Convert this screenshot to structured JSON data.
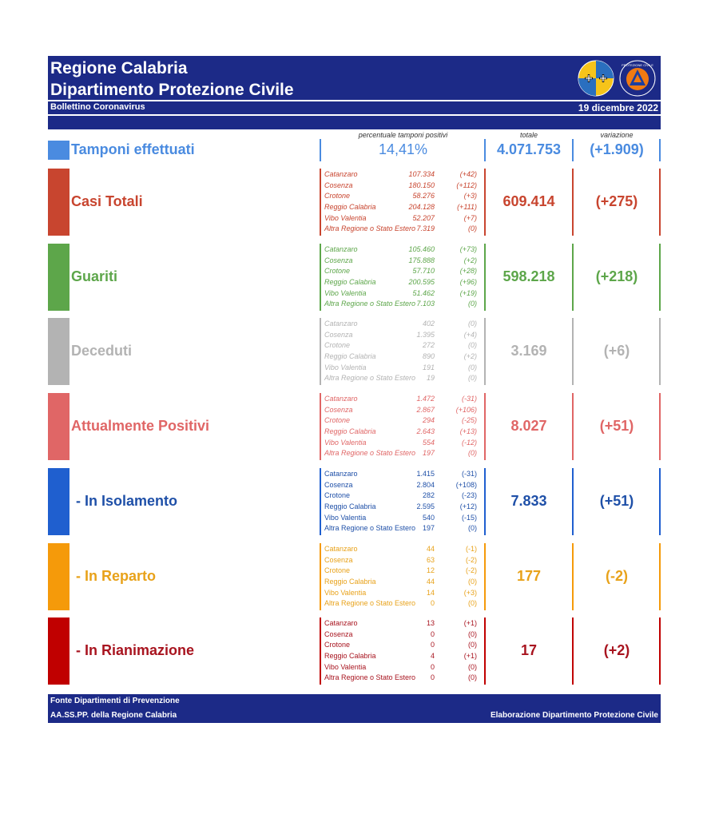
{
  "header": {
    "title1": "Regione Calabria",
    "title2": "Dipartimento Protezione Civile",
    "subtitle": "Bollettino Coronavirus",
    "date": "19 dicembre 2022",
    "logo_pc_text": "PROTEZIONE CIVILE"
  },
  "columns": {
    "pct_label": "percentuale tamponi positivi",
    "total_label": "totale",
    "var_label": "variazione"
  },
  "tamponi": {
    "label": "Tamponi effettuati",
    "pct": "14,41%",
    "total": "4.071.753",
    "variation": "(+1.909)",
    "color": "#4a8be0"
  },
  "sections": [
    {
      "label": "Casi Totali",
      "total": "609.414",
      "variation": "(+275)",
      "color": "#c8452f",
      "italic": true,
      "provinces": [
        {
          "name": "Catanzaro",
          "value": "107.334",
          "delta": "(+42)"
        },
        {
          "name": "Cosenza",
          "value": "180.150",
          "delta": "(+112)"
        },
        {
          "name": "Crotone",
          "value": "58.276",
          "delta": "(+3)"
        },
        {
          "name": "Reggio Calabria",
          "value": "204.128",
          "delta": "(+111)"
        },
        {
          "name": "Vibo Valentia",
          "value": "52.207",
          "delta": "(+7)"
        },
        {
          "name": "Altra Regione o Stato Estero",
          "value": "7.319",
          "delta": "(0)"
        }
      ]
    },
    {
      "label": "Guariti",
      "total": "598.218",
      "variation": "(+218)",
      "color": "#5da64a",
      "italic": true,
      "provinces": [
        {
          "name": "Catanzaro",
          "value": "105.460",
          "delta": "(+73)"
        },
        {
          "name": "Cosenza",
          "value": "175.888",
          "delta": "(+2)"
        },
        {
          "name": "Crotone",
          "value": "57.710",
          "delta": "(+28)"
        },
        {
          "name": "Reggio Calabria",
          "value": "200.595",
          "delta": "(+96)"
        },
        {
          "name": "Vibo Valentia",
          "value": "51.462",
          "delta": "(+19)"
        },
        {
          "name": "Altra Regione o Stato Estero",
          "value": "7.103",
          "delta": "(0)"
        }
      ]
    },
    {
      "label": "Deceduti",
      "total": "3.169",
      "variation": "(+6)",
      "color": "#b3b3b3",
      "italic": true,
      "provinces": [
        {
          "name": "Catanzaro",
          "value": "402",
          "delta": "(0)"
        },
        {
          "name": "Cosenza",
          "value": "1.395",
          "delta": "(+4)"
        },
        {
          "name": "Crotone",
          "value": "272",
          "delta": "(0)"
        },
        {
          "name": "Reggio Calabria",
          "value": "890",
          "delta": "(+2)"
        },
        {
          "name": "Vibo Valentia",
          "value": "191",
          "delta": "(0)"
        },
        {
          "name": "Altra Regione o Stato Estero",
          "value": "19",
          "delta": "(0)"
        }
      ]
    },
    {
      "label": "Attualmente Positivi",
      "total": "8.027",
      "variation": "(+51)",
      "color": "#e06666",
      "italic": true,
      "provinces": [
        {
          "name": "Catanzaro",
          "value": "1.472",
          "delta": "(-31)"
        },
        {
          "name": "Cosenza",
          "value": "2.867",
          "delta": "(+106)"
        },
        {
          "name": "Crotone",
          "value": "294",
          "delta": "(-25)"
        },
        {
          "name": "Reggio Calabria",
          "value": "2.643",
          "delta": "(+13)"
        },
        {
          "name": "Vibo Valentia",
          "value": "554",
          "delta": "(-12)"
        },
        {
          "name": "Altra Regione o Stato Estero",
          "value": "197",
          "delta": "(0)"
        }
      ]
    },
    {
      "label": "- In Isolamento",
      "total": "7.833",
      "variation": "(+51)",
      "color": "#1f5fcf",
      "text_color": "#1f50a8",
      "italic": false,
      "provinces": [
        {
          "name": "Catanzaro",
          "value": "1.415",
          "delta": "(-31)"
        },
        {
          "name": "Cosenza",
          "value": "2.804",
          "delta": "(+108)"
        },
        {
          "name": "Crotone",
          "value": "282",
          "delta": "(-23)"
        },
        {
          "name": "Reggio Calabria",
          "value": "2.595",
          "delta": "(+12)"
        },
        {
          "name": "Vibo Valentia",
          "value": "540",
          "delta": "(-15)"
        },
        {
          "name": "Altra Regione o Stato Estero",
          "value": "197",
          "delta": "(0)"
        }
      ]
    },
    {
      "label": "- In Reparto",
      "total": "177",
      "variation": "(-2)",
      "color": "#f59a0a",
      "text_color": "#e8a21a",
      "italic": false,
      "provinces": [
        {
          "name": "Catanzaro",
          "value": "44",
          "delta": "(-1)"
        },
        {
          "name": "Cosenza",
          "value": "63",
          "delta": "(-2)"
        },
        {
          "name": "Crotone",
          "value": "12",
          "delta": "(-2)"
        },
        {
          "name": "Reggio Calabria",
          "value": "44",
          "delta": "(0)"
        },
        {
          "name": "Vibo Valentia",
          "value": "14",
          "delta": "(+3)"
        },
        {
          "name": "Altra Regione o Stato Estero",
          "value": "0",
          "delta": "(0)"
        }
      ]
    },
    {
      "label": "- In Rianimazione",
      "total": "17",
      "variation": "(+2)",
      "color": "#c00000",
      "text_color": "#a8141f",
      "italic": false,
      "provinces": [
        {
          "name": "Catanzaro",
          "value": "13",
          "delta": "(+1)"
        },
        {
          "name": "Cosenza",
          "value": "0",
          "delta": "(0)"
        },
        {
          "name": "Crotone",
          "value": "0",
          "delta": "(0)"
        },
        {
          "name": "Reggio Calabria",
          "value": "4",
          "delta": "(+1)"
        },
        {
          "name": "Vibo Valentia",
          "value": "0",
          "delta": "(0)"
        },
        {
          "name": "Altra Regione o Stato Estero",
          "value": "0",
          "delta": "(0)"
        }
      ]
    }
  ],
  "footer": {
    "line1": "Fonte Dipartimenti di Prevenzione",
    "line2": "AA.SS.PP.  della Regione Calabria",
    "credit": "Elaborazione Dipartimento Protezione Civile"
  }
}
